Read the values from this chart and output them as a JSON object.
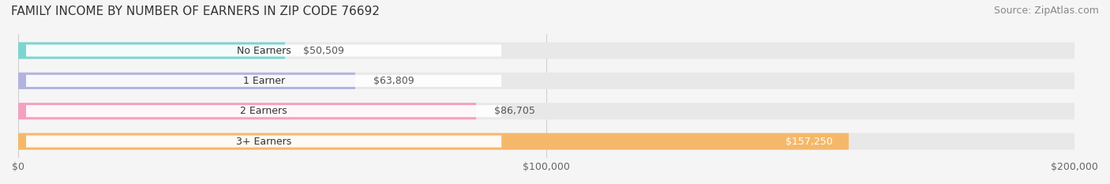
{
  "title": "FAMILY INCOME BY NUMBER OF EARNERS IN ZIP CODE 76692",
  "source": "Source: ZipAtlas.com",
  "categories": [
    "No Earners",
    "1 Earner",
    "2 Earners",
    "3+ Earners"
  ],
  "values": [
    50509,
    63809,
    86705,
    157250
  ],
  "labels": [
    "$50,509",
    "$63,809",
    "$86,705",
    "$157,250"
  ],
  "bar_colors": [
    "#7dd4d0",
    "#b3b3e0",
    "#f4a0c0",
    "#f5b86a"
  ],
  "label_colors": [
    "#555555",
    "#555555",
    "#555555",
    "#ffffff"
  ],
  "xmax": 200000,
  "xticks": [
    0,
    100000,
    200000
  ],
  "xticklabels": [
    "$0",
    "$100,000",
    "$200,000"
  ],
  "bg_color": "#f5f5f5",
  "bar_bg_color": "#e8e8e8",
  "title_fontsize": 11,
  "source_fontsize": 9,
  "tick_fontsize": 9,
  "label_fontsize": 9,
  "category_fontsize": 9
}
